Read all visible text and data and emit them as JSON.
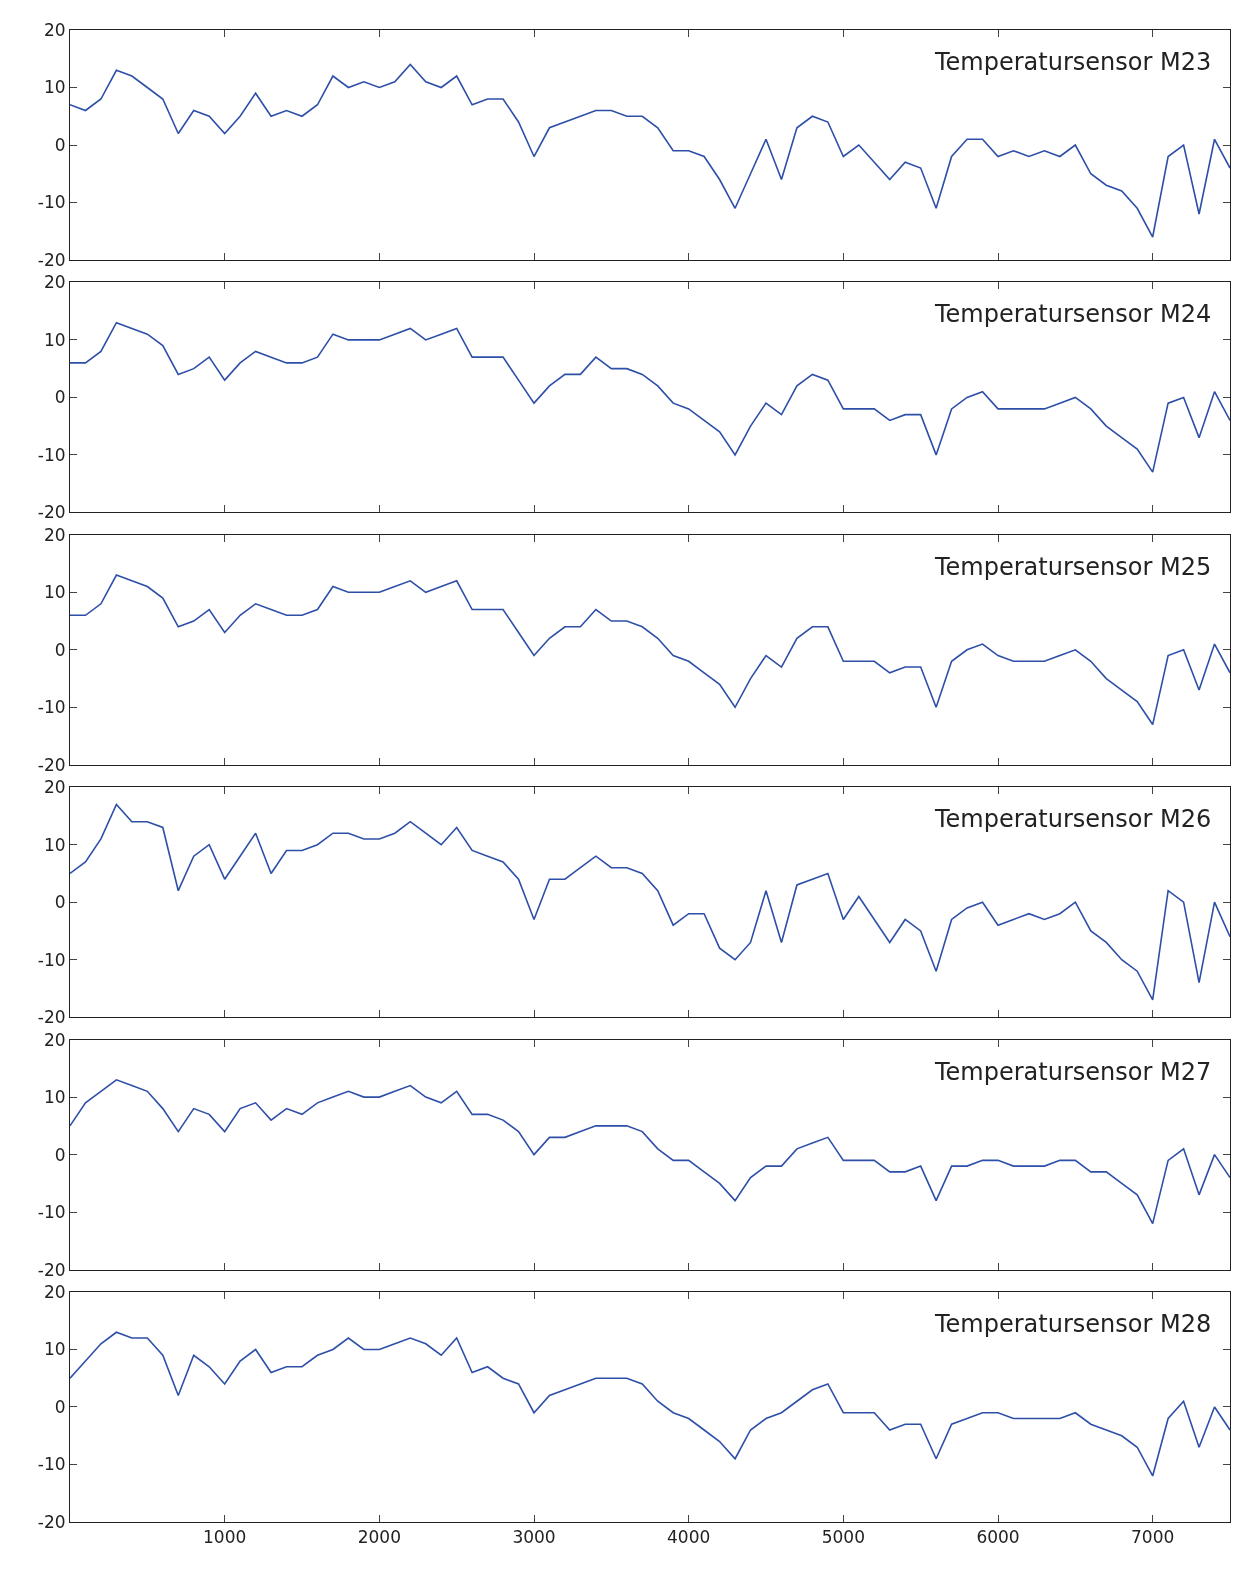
{
  "chart_data": [
    {
      "type": "line",
      "title": "Temperatursensor M23",
      "color": "#2e4fa8",
      "xlim": [
        0,
        7500
      ],
      "ylim": [
        -20,
        20
      ],
      "yticks": [
        -20,
        -10,
        0,
        10,
        20
      ],
      "xticks": [
        1000,
        2000,
        3000,
        4000,
        5000,
        6000,
        7000
      ],
      "tick_labels": "y",
      "x": [
        0,
        100,
        200,
        300,
        400,
        500,
        600,
        700,
        800,
        900,
        1000,
        1100,
        1200,
        1300,
        1400,
        1500,
        1600,
        1700,
        1800,
        1900,
        2000,
        2100,
        2200,
        2300,
        2400,
        2500,
        2600,
        2700,
        2800,
        2900,
        3000,
        3100,
        3200,
        3300,
        3400,
        3500,
        3600,
        3700,
        3800,
        3900,
        4000,
        4100,
        4200,
        4300,
        4400,
        4500,
        4600,
        4700,
        4800,
        4900,
        5000,
        5100,
        5200,
        5300,
        5400,
        5500,
        5600,
        5700,
        5800,
        5900,
        6000,
        6100,
        6200,
        6300,
        6400,
        6500,
        6600,
        6700,
        6800,
        6900,
        7000,
        7100,
        7200,
        7300,
        7400,
        7500
      ],
      "values": [
        7,
        6,
        8,
        13,
        12,
        10,
        8,
        2,
        6,
        5,
        2,
        5,
        9,
        5,
        6,
        5,
        7,
        12,
        10,
        11,
        10,
        11,
        14,
        11,
        10,
        12,
        7,
        8,
        8,
        4,
        -2,
        3,
        4,
        5,
        6,
        6,
        5,
        5,
        3,
        -1,
        -1,
        -2,
        -6,
        -11,
        -5,
        1,
        -6,
        3,
        5,
        4,
        -2,
        0,
        -3,
        -6,
        -3,
        -4,
        -11,
        -2,
        1,
        1,
        -2,
        -1,
        -2,
        -1,
        -2,
        0,
        -5,
        -7,
        -8,
        -11,
        -16,
        -2,
        0,
        -12,
        1,
        -4
      ]
    },
    {
      "type": "line",
      "title": "Temperatursensor M24",
      "color": "#2e4fa8",
      "xlim": [
        0,
        7500
      ],
      "ylim": [
        -20,
        20
      ],
      "yticks": [
        -20,
        -10,
        0,
        10,
        20
      ],
      "xticks": [
        1000,
        2000,
        3000,
        4000,
        5000,
        6000,
        7000
      ],
      "tick_labels": "y",
      "x": [
        0,
        100,
        200,
        300,
        400,
        500,
        600,
        700,
        800,
        900,
        1000,
        1100,
        1200,
        1300,
        1400,
        1500,
        1600,
        1700,
        1800,
        1900,
        2000,
        2100,
        2200,
        2300,
        2400,
        2500,
        2600,
        2700,
        2800,
        2900,
        3000,
        3100,
        3200,
        3300,
        3400,
        3500,
        3600,
        3700,
        3800,
        3900,
        4000,
        4100,
        4200,
        4300,
        4400,
        4500,
        4600,
        4700,
        4800,
        4900,
        5000,
        5100,
        5200,
        5300,
        5400,
        5500,
        5600,
        5700,
        5800,
        5900,
        6000,
        6100,
        6200,
        6300,
        6400,
        6500,
        6600,
        6700,
        6800,
        6900,
        7000,
        7100,
        7200,
        7300,
        7400,
        7500
      ],
      "values": [
        6,
        6,
        8,
        13,
        12,
        11,
        9,
        4,
        5,
        7,
        3,
        6,
        8,
        7,
        6,
        6,
        7,
        11,
        10,
        10,
        10,
        11,
        12,
        10,
        11,
        12,
        7,
        7,
        7,
        3,
        -1,
        2,
        4,
        4,
        7,
        5,
        5,
        4,
        2,
        -1,
        -2,
        -4,
        -6,
        -10,
        -5,
        -1,
        -3,
        2,
        4,
        3,
        -2,
        -2,
        -2,
        -4,
        -3,
        -3,
        -10,
        -2,
        0,
        1,
        -2,
        -2,
        -2,
        -2,
        -1,
        0,
        -2,
        -5,
        -7,
        -9,
        -13,
        -1,
        0,
        -7,
        1,
        -4
      ]
    },
    {
      "type": "line",
      "title": "Temperatursensor M25",
      "color": "#2e4fa8",
      "xlim": [
        0,
        7500
      ],
      "ylim": [
        -20,
        20
      ],
      "yticks": [
        -20,
        -10,
        0,
        10,
        20
      ],
      "xticks": [
        1000,
        2000,
        3000,
        4000,
        5000,
        6000,
        7000
      ],
      "tick_labels": "y",
      "x": [
        0,
        100,
        200,
        300,
        400,
        500,
        600,
        700,
        800,
        900,
        1000,
        1100,
        1200,
        1300,
        1400,
        1500,
        1600,
        1700,
        1800,
        1900,
        2000,
        2100,
        2200,
        2300,
        2400,
        2500,
        2600,
        2700,
        2800,
        2900,
        3000,
        3100,
        3200,
        3300,
        3400,
        3500,
        3600,
        3700,
        3800,
        3900,
        4000,
        4100,
        4200,
        4300,
        4400,
        4500,
        4600,
        4700,
        4800,
        4900,
        5000,
        5100,
        5200,
        5300,
        5400,
        5500,
        5600,
        5700,
        5800,
        5900,
        6000,
        6100,
        6200,
        6300,
        6400,
        6500,
        6600,
        6700,
        6800,
        6900,
        7000,
        7100,
        7200,
        7300,
        7400,
        7500
      ],
      "values": [
        6,
        6,
        8,
        13,
        12,
        11,
        9,
        4,
        5,
        7,
        3,
        6,
        8,
        7,
        6,
        6,
        7,
        11,
        10,
        10,
        10,
        11,
        12,
        10,
        11,
        12,
        7,
        7,
        7,
        3,
        -1,
        2,
        4,
        4,
        7,
        5,
        5,
        4,
        2,
        -1,
        -2,
        -4,
        -6,
        -10,
        -5,
        -1,
        -3,
        2,
        4,
        4,
        -2,
        -2,
        -2,
        -4,
        -3,
        -3,
        -10,
        -2,
        0,
        1,
        -1,
        -2,
        -2,
        -2,
        -1,
        0,
        -2,
        -5,
        -7,
        -9,
        -13,
        -1,
        0,
        -7,
        1,
        -4
      ]
    },
    {
      "type": "line",
      "title": "Temperatursensor M26",
      "color": "#2e4fa8",
      "xlim": [
        0,
        7500
      ],
      "ylim": [
        -20,
        20
      ],
      "yticks": [
        -20,
        -10,
        0,
        10,
        20
      ],
      "xticks": [
        1000,
        2000,
        3000,
        4000,
        5000,
        6000,
        7000
      ],
      "tick_labels": "y",
      "x": [
        0,
        100,
        200,
        300,
        400,
        500,
        600,
        700,
        800,
        900,
        1000,
        1100,
        1200,
        1300,
        1400,
        1500,
        1600,
        1700,
        1800,
        1900,
        2000,
        2100,
        2200,
        2300,
        2400,
        2500,
        2600,
        2700,
        2800,
        2900,
        3000,
        3100,
        3200,
        3300,
        3400,
        3500,
        3600,
        3700,
        3800,
        3900,
        4000,
        4100,
        4200,
        4300,
        4400,
        4500,
        4600,
        4700,
        4800,
        4900,
        5000,
        5100,
        5200,
        5300,
        5400,
        5500,
        5600,
        5700,
        5800,
        5900,
        6000,
        6100,
        6200,
        6300,
        6400,
        6500,
        6600,
        6700,
        6800,
        6900,
        7000,
        7100,
        7200,
        7300,
        7400,
        7500
      ],
      "values": [
        5,
        7,
        11,
        17,
        14,
        14,
        13,
        2,
        8,
        10,
        4,
        8,
        12,
        5,
        9,
        9,
        10,
        12,
        12,
        11,
        11,
        12,
        14,
        12,
        10,
        13,
        9,
        8,
        7,
        4,
        -3,
        4,
        4,
        6,
        8,
        6,
        6,
        5,
        2,
        -4,
        -2,
        -2,
        -8,
        -10,
        -7,
        2,
        -7,
        3,
        4,
        5,
        -3,
        1,
        -3,
        -7,
        -3,
        -5,
        -12,
        -3,
        -1,
        0,
        -4,
        -3,
        -2,
        -3,
        -2,
        0,
        -5,
        -7,
        -10,
        -12,
        -17,
        2,
        0,
        -14,
        0,
        -6
      ]
    },
    {
      "type": "line",
      "title": "Temperatursensor M27",
      "color": "#2e4fa8",
      "xlim": [
        0,
        7500
      ],
      "ylim": [
        -20,
        20
      ],
      "yticks": [
        -20,
        -10,
        0,
        10,
        20
      ],
      "xticks": [
        1000,
        2000,
        3000,
        4000,
        5000,
        6000,
        7000
      ],
      "tick_labels": "y",
      "x": [
        0,
        100,
        200,
        300,
        400,
        500,
        600,
        700,
        800,
        900,
        1000,
        1100,
        1200,
        1300,
        1400,
        1500,
        1600,
        1700,
        1800,
        1900,
        2000,
        2100,
        2200,
        2300,
        2400,
        2500,
        2600,
        2700,
        2800,
        2900,
        3000,
        3100,
        3200,
        3300,
        3400,
        3500,
        3600,
        3700,
        3800,
        3900,
        4000,
        4100,
        4200,
        4300,
        4400,
        4500,
        4600,
        4700,
        4800,
        4900,
        5000,
        5100,
        5200,
        5300,
        5400,
        5500,
        5600,
        5700,
        5800,
        5900,
        6000,
        6100,
        6200,
        6300,
        6400,
        6500,
        6600,
        6700,
        6800,
        6900,
        7000,
        7100,
        7200,
        7300,
        7400,
        7500
      ],
      "values": [
        5,
        9,
        11,
        13,
        12,
        11,
        8,
        4,
        8,
        7,
        4,
        8,
        9,
        6,
        8,
        7,
        9,
        10,
        11,
        10,
        10,
        11,
        12,
        10,
        9,
        11,
        7,
        7,
        6,
        4,
        0,
        3,
        3,
        4,
        5,
        5,
        5,
        4,
        1,
        -1,
        -1,
        -3,
        -5,
        -8,
        -4,
        -2,
        -2,
        1,
        2,
        3,
        -1,
        -1,
        -1,
        -3,
        -3,
        -2,
        -8,
        -2,
        -2,
        -1,
        -1,
        -2,
        -2,
        -2,
        -1,
        -1,
        -3,
        -3,
        -5,
        -7,
        -12,
        -1,
        1,
        -7,
        0,
        -4
      ]
    },
    {
      "type": "line",
      "title": "Temperatursensor M28",
      "color": "#2e4fa8",
      "xlim": [
        0,
        7500
      ],
      "ylim": [
        -20,
        20
      ],
      "yticks": [
        -20,
        -10,
        0,
        10,
        20
      ],
      "xticks": [
        1000,
        2000,
        3000,
        4000,
        5000,
        6000,
        7000
      ],
      "x": [
        0,
        100,
        200,
        300,
        400,
        500,
        600,
        700,
        800,
        900,
        1000,
        1100,
        1200,
        1300,
        1400,
        1500,
        1600,
        1700,
        1800,
        1900,
        2000,
        2100,
        2200,
        2300,
        2400,
        2500,
        2600,
        2700,
        2800,
        2900,
        3000,
        3100,
        3200,
        3300,
        3400,
        3500,
        3600,
        3700,
        3800,
        3900,
        4000,
        4100,
        4200,
        4300,
        4400,
        4500,
        4600,
        4700,
        4800,
        4900,
        5000,
        5100,
        5200,
        5300,
        5400,
        5500,
        5600,
        5700,
        5800,
        5900,
        6000,
        6100,
        6200,
        6300,
        6400,
        6500,
        6600,
        6700,
        6800,
        6900,
        7000,
        7100,
        7200,
        7300,
        7400,
        7500
      ],
      "values": [
        5,
        8,
        11,
        13,
        12,
        12,
        9,
        2,
        9,
        7,
        4,
        8,
        10,
        6,
        7,
        7,
        9,
        10,
        12,
        10,
        10,
        11,
        12,
        11,
        9,
        12,
        6,
        7,
        5,
        4,
        -1,
        2,
        3,
        4,
        5,
        5,
        5,
        4,
        1,
        -1,
        -2,
        -4,
        -6,
        -9,
        -4,
        -2,
        -1,
        1,
        3,
        4,
        -1,
        -1,
        -1,
        -4,
        -3,
        -3,
        -9,
        -3,
        -2,
        -1,
        -1,
        -2,
        -2,
        -2,
        -2,
        -1,
        -3,
        -4,
        -5,
        -7,
        -12,
        -2,
        1,
        -7,
        0,
        -4
      ]
    }
  ]
}
